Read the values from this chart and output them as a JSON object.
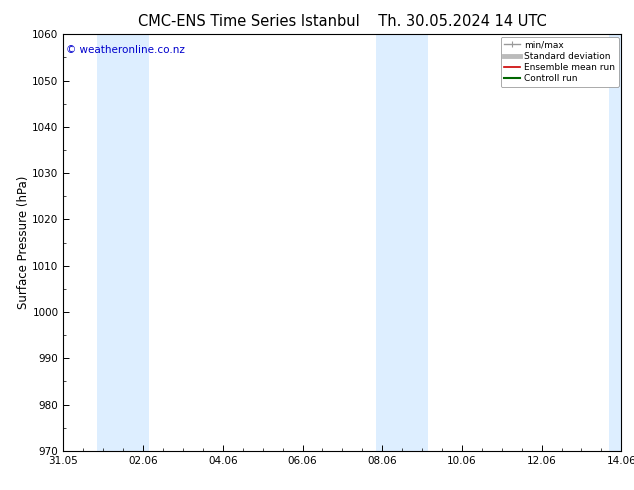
{
  "title_left": "CMC-ENS Time Series Istanbul",
  "title_right": "Th. 30.05.2024 14 UTC",
  "ylabel": "Surface Pressure (hPa)",
  "ylim": [
    970,
    1060
  ],
  "yticks": [
    970,
    980,
    990,
    1000,
    1010,
    1020,
    1030,
    1040,
    1050,
    1060
  ],
  "xlim_start": 0,
  "xlim_end": 14,
  "xtick_positions": [
    0,
    2,
    4,
    6,
    8,
    10,
    12,
    14
  ],
  "xtick_labels": [
    "31.05",
    "02.06",
    "04.06",
    "06.06",
    "08.06",
    "10.06",
    "12.06",
    "14.06"
  ],
  "shaded_bands": [
    {
      "x_start": 0.85,
      "x_end": 2.15
    },
    {
      "x_start": 7.85,
      "x_end": 9.15
    },
    {
      "x_start": 13.7,
      "x_end": 14.0
    }
  ],
  "band_color": "#ddeeff",
  "copyright_text": "© weatheronline.co.nz",
  "copyright_color": "#0000cc",
  "copyright_fontsize": 7.5,
  "legend_entries": [
    {
      "label": "min/max",
      "color": "#999999",
      "lw": 1.0
    },
    {
      "label": "Standard deviation",
      "color": "#bbbbbb",
      "lw": 3.5
    },
    {
      "label": "Ensemble mean run",
      "color": "#cc0000",
      "lw": 1.2
    },
    {
      "label": "Controll run",
      "color": "#006600",
      "lw": 1.5
    }
  ],
  "bg_color": "#ffffff",
  "title_fontsize": 10.5,
  "tick_fontsize": 7.5,
  "ylabel_fontsize": 8.5,
  "figsize": [
    6.34,
    4.9
  ],
  "dpi": 100
}
